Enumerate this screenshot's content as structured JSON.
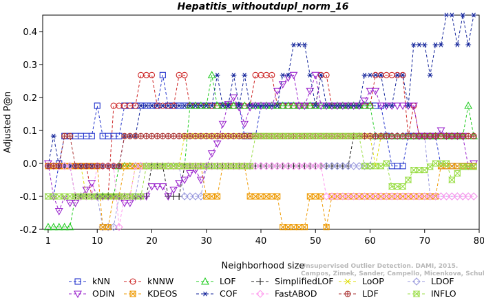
{
  "chart_data": {
    "type": "line",
    "title": "Hepatitis_withoutdupl_norm_16",
    "xlabel": "Neighborhood size",
    "ylabel": "Adjusted P@n",
    "xlim": [
      0,
      80
    ],
    "ylim": [
      -0.2,
      0.45
    ],
    "xticks": [
      "1",
      "10",
      "20",
      "30",
      "40",
      "50",
      "60",
      "70",
      "80"
    ],
    "yticks": [
      "-0.2",
      "-0.1",
      "0.0",
      "0.1",
      "0.2",
      "0.3",
      "0.4"
    ],
    "grid": false,
    "legend_position": "bottom",
    "watermark": [
      "Unsupervised Outlier Detection. DAMI, 2015.",
      "Campos, Zimek, Sander, Campello, Micenkova, Schubert, Assent, Houle"
    ],
    "series": [
      {
        "name": "kNN",
        "color": "#2233cc",
        "marker": "square",
        "points": [
          [
            1,
            -0.1
          ],
          [
            2,
            -0.1
          ],
          [
            3,
            0.0
          ],
          [
            4,
            0.083
          ],
          [
            6,
            0.083
          ],
          [
            8,
            0.083
          ],
          [
            10,
            0.175
          ],
          [
            11,
            0.083
          ],
          [
            14,
            0.083
          ],
          [
            15,
            0.175
          ],
          [
            21,
            0.175
          ],
          [
            22,
            0.268
          ],
          [
            23,
            0.175
          ],
          [
            36,
            0.175
          ],
          [
            37,
            0.083
          ],
          [
            39,
            0.083
          ],
          [
            40,
            0.175
          ],
          [
            62,
            0.175
          ],
          [
            63,
            0.083
          ],
          [
            64,
            -0.008
          ],
          [
            66,
            -0.008
          ],
          [
            67,
            0.083
          ],
          [
            72,
            0.083
          ],
          [
            73,
            -0.008
          ],
          [
            79,
            -0.008
          ]
        ]
      },
      {
        "name": "kNNW",
        "color": "#cc2222",
        "marker": "circle",
        "points": [
          [
            1,
            -0.008
          ],
          [
            8,
            -0.008
          ],
          [
            9,
            -0.1
          ],
          [
            12,
            -0.1
          ],
          [
            13,
            0.175
          ],
          [
            17,
            0.175
          ],
          [
            18,
            0.268
          ],
          [
            20,
            0.268
          ],
          [
            21,
            0.175
          ],
          [
            24,
            0.175
          ],
          [
            25,
            0.268
          ],
          [
            26,
            0.268
          ],
          [
            27,
            0.175
          ],
          [
            38,
            0.175
          ],
          [
            39,
            0.268
          ],
          [
            42,
            0.268
          ],
          [
            43,
            0.175
          ],
          [
            50,
            0.175
          ],
          [
            51,
            0.268
          ],
          [
            52,
            0.268
          ],
          [
            53,
            0.175
          ],
          [
            60,
            0.175
          ],
          [
            61,
            0.268
          ],
          [
            66,
            0.268
          ],
          [
            67,
            0.083
          ],
          [
            68,
            0.175
          ],
          [
            69,
            0.083
          ],
          [
            79,
            0.083
          ]
        ]
      },
      {
        "name": "LOF",
        "color": "#22cc22",
        "marker": "triangle-up",
        "points": [
          [
            1,
            -0.193
          ],
          [
            5,
            -0.193
          ],
          [
            6,
            -0.1
          ],
          [
            12,
            -0.1
          ],
          [
            14,
            -0.008
          ],
          [
            26,
            -0.008
          ],
          [
            27,
            0.175
          ],
          [
            30,
            0.175
          ],
          [
            31,
            0.268
          ],
          [
            32,
            0.175
          ],
          [
            60,
            0.175
          ],
          [
            61,
            0.083
          ],
          [
            77,
            0.083
          ],
          [
            78,
            0.175
          ],
          [
            79,
            0.083
          ]
        ]
      },
      {
        "name": "SimplifiedLOF",
        "color": "#222222",
        "marker": "plus",
        "points": [
          [
            1,
            -0.008
          ],
          [
            5,
            -0.008
          ],
          [
            6,
            -0.1
          ],
          [
            19,
            -0.1
          ],
          [
            20,
            -0.008
          ],
          [
            22,
            -0.008
          ],
          [
            23,
            -0.1
          ],
          [
            25,
            -0.1
          ],
          [
            26,
            -0.008
          ],
          [
            38,
            -0.008
          ],
          [
            39,
            -0.008
          ],
          [
            50,
            -0.008
          ],
          [
            51,
            -0.008
          ],
          [
            56,
            -0.008
          ],
          [
            57,
            0.083
          ],
          [
            62,
            0.083
          ]
        ]
      },
      {
        "name": "LoOP",
        "color": "#dddd00",
        "marker": "x",
        "points": [
          [
            1,
            -0.008
          ],
          [
            7,
            -0.008
          ],
          [
            8,
            -0.1
          ],
          [
            16,
            -0.1
          ],
          [
            17,
            -0.008
          ],
          [
            25,
            -0.008
          ],
          [
            26,
            0.083
          ],
          [
            60,
            0.083
          ],
          [
            61,
            -0.008
          ],
          [
            62,
            0.083
          ]
        ]
      },
      {
        "name": "LDOF",
        "color": "#9999dd",
        "marker": "diamond",
        "points": [
          [
            1,
            -0.008
          ],
          [
            5,
            -0.008
          ],
          [
            6,
            -0.1
          ],
          [
            10,
            -0.1
          ],
          [
            11,
            -0.193
          ],
          [
            13,
            -0.193
          ],
          [
            14,
            -0.1
          ],
          [
            17,
            -0.1
          ],
          [
            18,
            -0.008
          ],
          [
            25,
            -0.008
          ],
          [
            26,
            -0.1
          ],
          [
            29,
            -0.1
          ],
          [
            30,
            -0.008
          ],
          [
            60,
            -0.008
          ],
          [
            61,
            0.083
          ],
          [
            70,
            0.083
          ],
          [
            71,
            -0.1
          ],
          [
            79,
            -0.1
          ]
        ]
      },
      {
        "name": "ODIN",
        "color": "#9922cc",
        "marker": "triangle-down",
        "points": [
          [
            1,
            0.0
          ],
          [
            2,
            -0.1
          ],
          [
            3,
            -0.145
          ],
          [
            4,
            -0.1
          ],
          [
            5,
            -0.12
          ],
          [
            6,
            -0.12
          ],
          [
            7,
            -0.1
          ],
          [
            8,
            -0.08
          ],
          [
            9,
            -0.06
          ],
          [
            10,
            -0.1
          ],
          [
            11,
            -0.1
          ],
          [
            12,
            -0.1
          ],
          [
            14,
            -0.1
          ],
          [
            15,
            -0.12
          ],
          [
            16,
            -0.12
          ],
          [
            17,
            -0.1
          ],
          [
            18,
            -0.1
          ],
          [
            19,
            -0.1
          ],
          [
            20,
            -0.07
          ],
          [
            21,
            -0.07
          ],
          [
            22,
            -0.07
          ],
          [
            23,
            -0.1
          ],
          [
            24,
            -0.08
          ],
          [
            25,
            -0.06
          ],
          [
            26,
            -0.05
          ],
          [
            27,
            -0.03
          ],
          [
            28,
            -0.02
          ],
          [
            29,
            -0.05
          ],
          [
            30,
            -0.01
          ],
          [
            31,
            0.03
          ],
          [
            32,
            0.06
          ],
          [
            33,
            0.12
          ],
          [
            34,
            0.18
          ],
          [
            35,
            0.2
          ],
          [
            36,
            0.17
          ],
          [
            37,
            0.12
          ],
          [
            38,
            0.17
          ],
          [
            39,
            0.175
          ],
          [
            42,
            0.175
          ],
          [
            43,
            0.22
          ],
          [
            44,
            0.24
          ],
          [
            45,
            0.26
          ],
          [
            46,
            0.268
          ],
          [
            47,
            0.175
          ],
          [
            48,
            0.175
          ],
          [
            49,
            0.22
          ],
          [
            50,
            0.268
          ],
          [
            51,
            0.175
          ],
          [
            58,
            0.175
          ],
          [
            59,
            0.19
          ],
          [
            60,
            0.22
          ],
          [
            61,
            0.22
          ],
          [
            62,
            0.175
          ],
          [
            68,
            0.175
          ],
          [
            69,
            0.083
          ],
          [
            72,
            0.083
          ],
          [
            73,
            0.1
          ],
          [
            74,
            0.083
          ],
          [
            77,
            0.083
          ],
          [
            78,
            -0.008
          ],
          [
            79,
            0.0
          ]
        ]
      },
      {
        "name": "KDEOS",
        "color": "#ee9900",
        "marker": "boxed-x",
        "points": [
          [
            1,
            -0.008
          ],
          [
            10,
            -0.008
          ],
          [
            11,
            -0.193
          ],
          [
            12,
            -0.193
          ],
          [
            13,
            -0.1
          ],
          [
            14,
            -0.1
          ],
          [
            15,
            -0.008
          ],
          [
            29,
            -0.008
          ],
          [
            30,
            -0.1
          ],
          [
            32,
            -0.1
          ],
          [
            33,
            -0.008
          ],
          [
            37,
            -0.008
          ],
          [
            38,
            -0.1
          ],
          [
            43,
            -0.1
          ],
          [
            44,
            -0.193
          ],
          [
            48,
            -0.193
          ],
          [
            49,
            -0.1
          ],
          [
            51,
            -0.1
          ],
          [
            52,
            -0.193
          ],
          [
            53,
            -0.1
          ],
          [
            72,
            -0.1
          ],
          [
            73,
            -0.008
          ],
          [
            79,
            -0.008
          ]
        ]
      },
      {
        "name": "COF",
        "color": "#112299",
        "marker": "asterisk",
        "points": [
          [
            1,
            -0.008
          ],
          [
            2,
            0.083
          ],
          [
            3,
            -0.008
          ],
          [
            13,
            -0.008
          ],
          [
            14,
            -0.008
          ],
          [
            15,
            0.083
          ],
          [
            16,
            0.083
          ],
          [
            17,
            0.083
          ],
          [
            18,
            0.175
          ],
          [
            26,
            0.175
          ],
          [
            27,
            0.175
          ],
          [
            31,
            0.175
          ],
          [
            32,
            0.268
          ],
          [
            33,
            0.175
          ],
          [
            35,
            0.268
          ],
          [
            36,
            0.175
          ],
          [
            37,
            0.268
          ],
          [
            38,
            0.175
          ],
          [
            43,
            0.175
          ],
          [
            44,
            0.268
          ],
          [
            45,
            0.268
          ],
          [
            46,
            0.36
          ],
          [
            48,
            0.36
          ],
          [
            49,
            0.268
          ],
          [
            50,
            0.175
          ],
          [
            51,
            0.268
          ],
          [
            52,
            0.175
          ],
          [
            58,
            0.175
          ],
          [
            59,
            0.268
          ],
          [
            62,
            0.268
          ],
          [
            63,
            0.175
          ],
          [
            64,
            0.175
          ],
          [
            65,
            0.268
          ],
          [
            66,
            0.268
          ],
          [
            67,
            0.175
          ],
          [
            68,
            0.36
          ],
          [
            70,
            0.36
          ],
          [
            71,
            0.268
          ],
          [
            72,
            0.36
          ],
          [
            73,
            0.36
          ],
          [
            74,
            0.45
          ],
          [
            75,
            0.45
          ],
          [
            76,
            0.36
          ],
          [
            77,
            0.45
          ],
          [
            78,
            0.36
          ],
          [
            79,
            0.45
          ]
        ]
      },
      {
        "name": "FastABOD",
        "color": "#ff99ee",
        "marker": "diamond",
        "points": [
          [
            1,
            -0.008
          ],
          [
            5,
            -0.008
          ],
          [
            6,
            -0.1
          ],
          [
            9,
            -0.1
          ],
          [
            10,
            -0.008
          ],
          [
            13,
            -0.008
          ],
          [
            14,
            -0.193
          ],
          [
            15,
            -0.1
          ],
          [
            16,
            -0.1
          ],
          [
            17,
            -0.008
          ],
          [
            40,
            -0.008
          ],
          [
            51,
            -0.008
          ],
          [
            52,
            -0.1
          ],
          [
            72,
            -0.1
          ],
          [
            73,
            -0.1
          ],
          [
            79,
            -0.1
          ]
        ]
      },
      {
        "name": "LDF",
        "color": "#aa3333",
        "marker": "circle-plus",
        "points": [
          [
            1,
            -0.008
          ],
          [
            3,
            -0.008
          ],
          [
            4,
            0.083
          ],
          [
            5,
            0.083
          ],
          [
            6,
            -0.008
          ],
          [
            14,
            -0.008
          ],
          [
            15,
            0.083
          ],
          [
            79,
            0.083
          ]
        ]
      },
      {
        "name": "INFLO",
        "color": "#99dd44",
        "marker": "hourglass",
        "points": [
          [
            1,
            -0.1
          ],
          [
            11,
            -0.1
          ],
          [
            12,
            -0.1
          ],
          [
            18,
            -0.1
          ],
          [
            19,
            -0.008
          ],
          [
            38,
            -0.008
          ],
          [
            39,
            0.083
          ],
          [
            58,
            0.083
          ],
          [
            59,
            -0.008
          ],
          [
            61,
            -0.008
          ],
          [
            62,
            -0.008
          ],
          [
            63,
            0.0
          ],
          [
            64,
            -0.07
          ],
          [
            66,
            -0.07
          ],
          [
            67,
            -0.05
          ],
          [
            68,
            -0.02
          ],
          [
            69,
            -0.02
          ],
          [
            70,
            -0.02
          ],
          [
            71,
            -0.01
          ],
          [
            72,
            0.0
          ],
          [
            74,
            0.0
          ],
          [
            75,
            -0.05
          ],
          [
            76,
            -0.03
          ],
          [
            77,
            -0.01
          ],
          [
            78,
            -0.01
          ],
          [
            79,
            -0.01
          ]
        ]
      }
    ]
  }
}
